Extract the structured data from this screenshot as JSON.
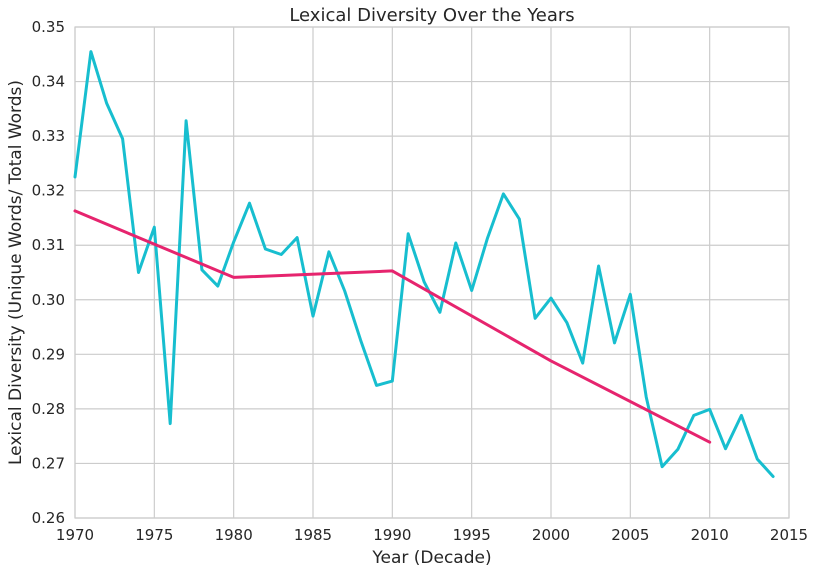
{
  "chart_data": {
    "type": "line",
    "title": "Lexical Diversity Over the Years",
    "xlabel": "Year (Decade)",
    "ylabel": "Lexical Diversity (Unique Words/ Total Words)",
    "xlim": [
      1970,
      2015
    ],
    "ylim": [
      0.26,
      0.35
    ],
    "xticks": [
      1970,
      1975,
      1980,
      1985,
      1990,
      1995,
      2000,
      2005,
      2010,
      2015
    ],
    "yticks": [
      "0.26",
      "0.27",
      "0.28",
      "0.29",
      "0.30",
      "0.31",
      "0.32",
      "0.33",
      "0.34",
      "0.35"
    ],
    "grid": true,
    "series": [
      {
        "color": "#17becf",
        "x": [
          1970,
          1971,
          1972,
          1973,
          1974,
          1975,
          1976,
          1977,
          1978,
          1979,
          1980,
          1981,
          1982,
          1983,
          1984,
          1985,
          1986,
          1987,
          1988,
          1989,
          1990,
          1991,
          1992,
          1993,
          1994,
          1995,
          1996,
          1997,
          1998,
          1999,
          2000,
          2001,
          2002,
          2003,
          2004,
          2005,
          2006,
          2007,
          2008,
          2009,
          2010,
          2011,
          2012,
          2013,
          2014
        ],
        "y": [
          0.3225,
          0.3455,
          0.336,
          0.3295,
          0.305,
          0.3133,
          0.2773,
          0.3328,
          0.3055,
          0.3025,
          0.3106,
          0.3177,
          0.3093,
          0.3083,
          0.3114,
          0.297,
          0.3088,
          0.3016,
          0.2926,
          0.2843,
          0.2851,
          0.3121,
          0.3033,
          0.2977,
          0.3104,
          0.3017,
          0.3113,
          0.3194,
          0.3148,
          0.2966,
          0.3003,
          0.2958,
          0.2884,
          0.3062,
          0.2921,
          0.301,
          0.2822,
          0.2694,
          0.2726,
          0.2788,
          0.2799,
          0.2727,
          0.2788,
          0.2708,
          0.2676
        ]
      },
      {
        "color": "#e6246e",
        "x": [
          1970,
          1980,
          1990,
          2000,
          2010
        ],
        "y": [
          0.3163,
          0.3041,
          0.3053,
          0.2888,
          0.2739
        ]
      }
    ]
  }
}
